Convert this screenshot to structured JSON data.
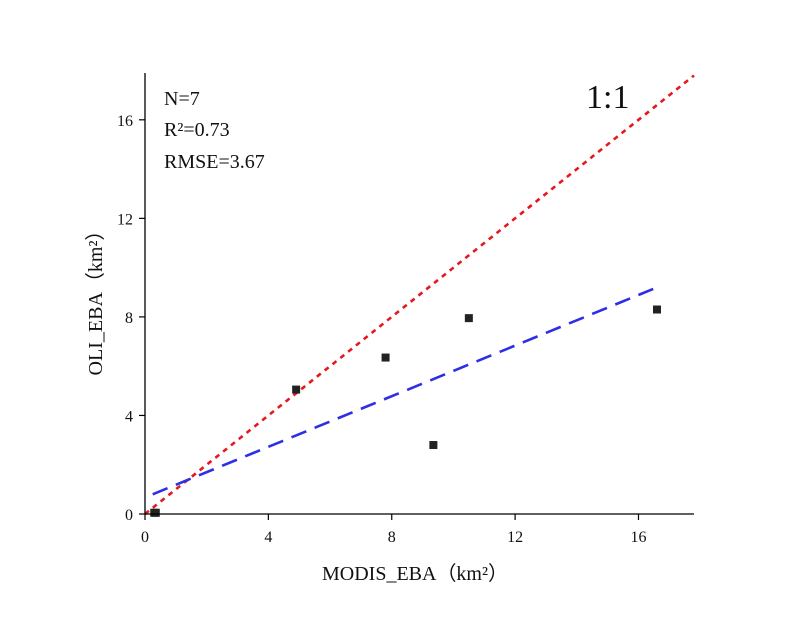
{
  "chart_data": {
    "type": "scatter",
    "xlabel": "MODIS_EBA（km²）",
    "ylabel": "OLI_EBA（km²）",
    "xlim": [
      0,
      17.8
    ],
    "ylim": [
      0,
      17.9
    ],
    "x_ticks": [
      0,
      4,
      8,
      12,
      16
    ],
    "y_ticks": [
      0,
      4,
      8,
      12,
      16
    ],
    "x_tick_labels": [
      "0",
      "4",
      "8",
      "12",
      "16"
    ],
    "y_tick_labels": [
      "0",
      "4",
      "8",
      "12",
      "16"
    ],
    "grid": false,
    "points": [
      {
        "x": 0.3,
        "y": 0.05
      },
      {
        "x": 0.35,
        "y": 0.05
      },
      {
        "x": 4.9,
        "y": 5.05
      },
      {
        "x": 7.8,
        "y": 6.35
      },
      {
        "x": 9.35,
        "y": 2.8
      },
      {
        "x": 10.5,
        "y": 7.95
      },
      {
        "x": 16.6,
        "y": 8.3
      }
    ],
    "point_color": "#222222",
    "reference_line": {
      "label": "1:1",
      "slope": 1,
      "intercept": 0,
      "x_range": [
        0,
        17.8
      ],
      "color": "#e8161e",
      "style": "dotted"
    },
    "fit_line": {
      "x_range": [
        0.25,
        16.7
      ],
      "y_range": [
        0.8,
        9.25
      ],
      "color": "#2e2ee6",
      "style": "dashed"
    },
    "annotations": {
      "n": "N=7",
      "r2": "R²=0.73",
      "rmse": "RMSE=3.67",
      "ratio": "1:1"
    }
  }
}
